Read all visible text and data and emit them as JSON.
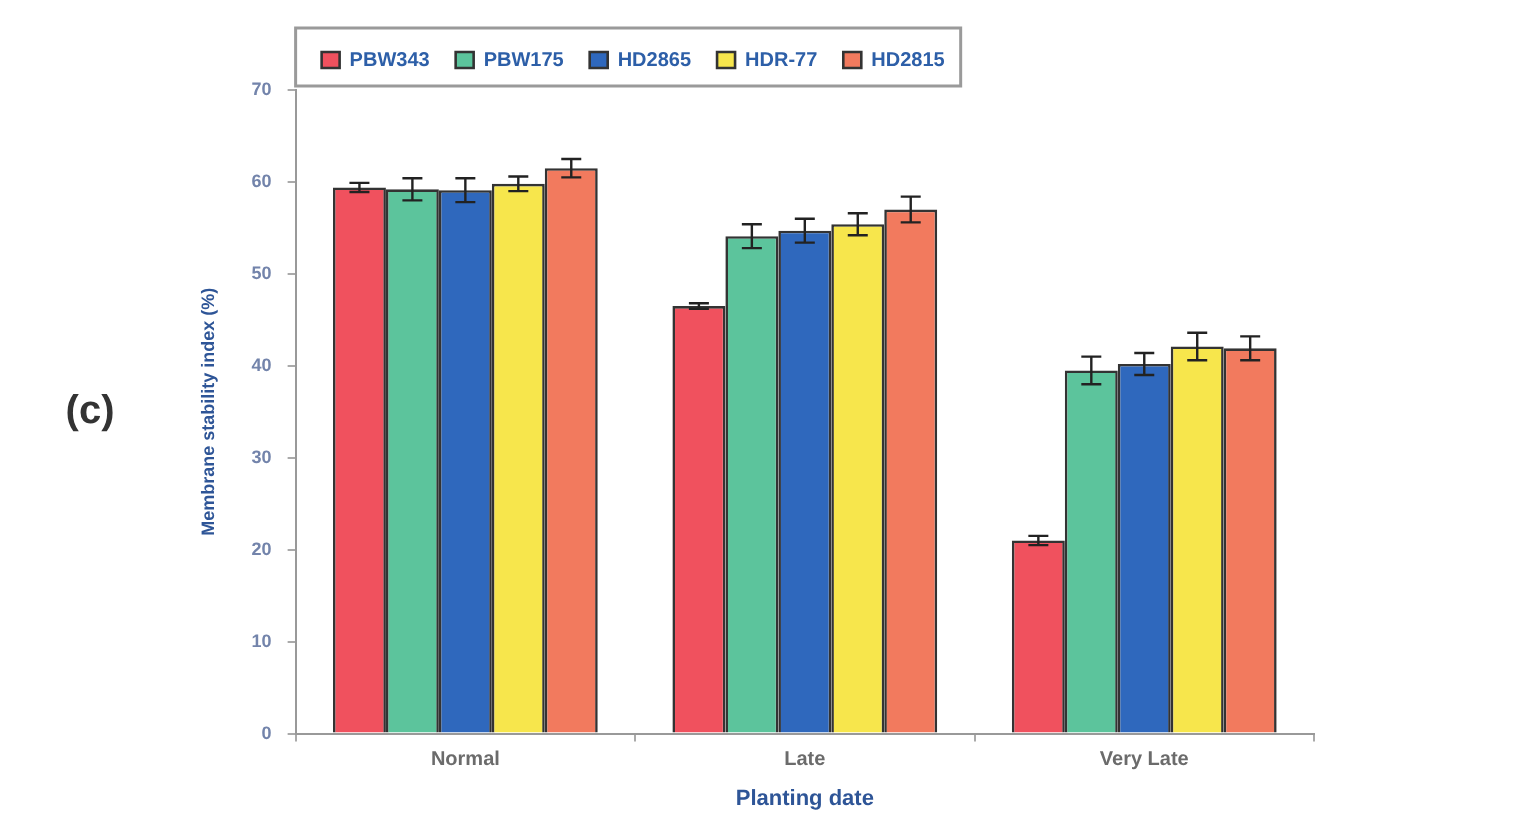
{
  "chart_data": {
    "type": "bar",
    "xlabel": "Planting date",
    "ylabel": "Membrane stability index (%)",
    "categories": [
      "Normal",
      "Late",
      "Very Late"
    ],
    "series": [
      {
        "name": "PBW343",
        "color": "#f0515e",
        "values": [
          59.4,
          46.5,
          21.0
        ],
        "errors": [
          0.5,
          0.3,
          0.5
        ]
      },
      {
        "name": "PBW175",
        "color": "#5cc49c",
        "values": [
          59.2,
          54.1,
          39.5
        ],
        "errors": [
          1.2,
          1.3,
          1.5
        ]
      },
      {
        "name": "HD2865",
        "color": "#2f68bd",
        "values": [
          59.1,
          54.7,
          40.2
        ],
        "errors": [
          1.3,
          1.3,
          1.2
        ]
      },
      {
        "name": "HDR-77",
        "color": "#f7e64c",
        "values": [
          59.8,
          55.4,
          42.1
        ],
        "errors": [
          0.8,
          1.2,
          1.5
        ]
      },
      {
        "name": "HD2815",
        "color": "#f27a5e",
        "values": [
          61.5,
          57.0,
          41.9
        ],
        "errors": [
          1.0,
          1.4,
          1.3
        ]
      }
    ],
    "ylim": [
      0,
      70
    ],
    "yticks": [
      0,
      10,
      20,
      30,
      40,
      50,
      60,
      70
    ],
    "grid": false,
    "legend": "top",
    "annotations": [
      "(c)"
    ]
  }
}
